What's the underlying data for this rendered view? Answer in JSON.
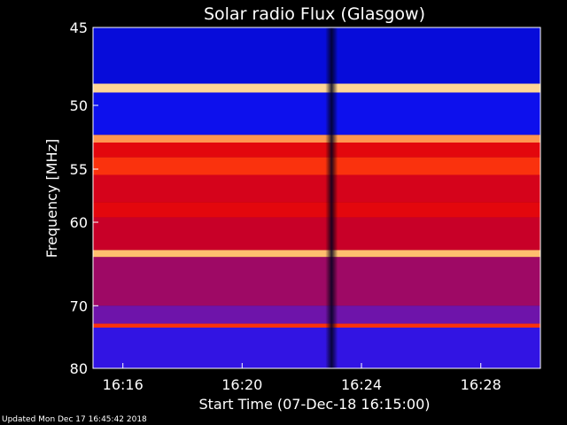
{
  "chart_data": {
    "type": "heatmap",
    "title": "Solar radio Flux (Glasgow)",
    "xlabel": "Start Time (07-Dec-18 16:15:00)",
    "ylabel": "Frequency [MHz]",
    "x_ticks": [
      "16:16",
      "16:20",
      "16:24",
      "16:28"
    ],
    "y_ticks": [
      45,
      50,
      55,
      60,
      70,
      80
    ],
    "y_scale": "reciprocal",
    "xlim": [
      "16:15",
      "16:30"
    ],
    "ylim": [
      45,
      80
    ],
    "colormap": "blue-red-yellow",
    "frequency_bands": [
      {
        "from": 45.0,
        "to": 48.5,
        "level": 0.05
      },
      {
        "from": 48.5,
        "to": 49.1,
        "level": 0.95
      },
      {
        "from": 49.1,
        "to": 52.2,
        "level": 0.1
      },
      {
        "from": 52.2,
        "to": 52.8,
        "level": 0.85
      },
      {
        "from": 52.8,
        "to": 54.0,
        "level": 0.55
      },
      {
        "from": 54.0,
        "to": 55.5,
        "level": 0.7
      },
      {
        "from": 55.5,
        "to": 58.0,
        "level": 0.5
      },
      {
        "from": 58.0,
        "to": 59.5,
        "level": 0.55
      },
      {
        "from": 59.5,
        "to": 63.0,
        "level": 0.45
      },
      {
        "from": 63.0,
        "to": 63.8,
        "level": 0.9
      },
      {
        "from": 63.8,
        "to": 70.0,
        "level": 0.38
      },
      {
        "from": 70.0,
        "to": 72.6,
        "level": 0.3
      },
      {
        "from": 72.6,
        "to": 73.2,
        "level": 0.7
      },
      {
        "from": 73.2,
        "to": 80.0,
        "level": 0.2
      }
    ],
    "dark_stripe_time": "16:23"
  },
  "footer": {
    "updated": "Updated Mon Dec 17 16:45:42 2018"
  },
  "colors": {
    "background": "#000000",
    "low": "#0010ff",
    "mid": "#cc0000",
    "high": "#ffe080"
  }
}
